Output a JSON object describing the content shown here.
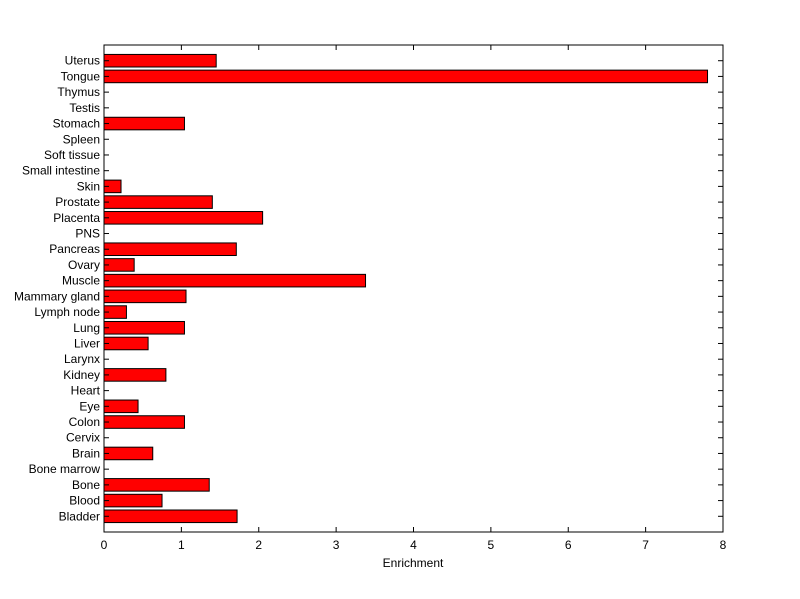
{
  "chart_data": {
    "type": "bar",
    "orientation": "horizontal",
    "title": "",
    "xlabel": "Enrichment",
    "ylabel": "",
    "xlim": [
      0,
      8
    ],
    "x_ticks": [
      "0",
      "1",
      "2",
      "3",
      "4",
      "5",
      "6",
      "7",
      "8"
    ],
    "grid": false,
    "bar_color": "#ff0000",
    "bar_edge_color": "#000000",
    "categories": [
      "Bladder",
      "Blood",
      "Bone",
      "Bone marrow",
      "Brain",
      "Cervix",
      "Colon",
      "Eye",
      "Heart",
      "Kidney",
      "Larynx",
      "Liver",
      "Lung",
      "Lymph node",
      "Mammary gland",
      "Muscle",
      "Ovary",
      "Pancreas",
      "PNS",
      "Placenta",
      "Prostate",
      "Skin",
      "Small intestine",
      "Soft tissue",
      "Spleen",
      "Stomach",
      "Testis",
      "Thymus",
      "Tongue",
      "Uterus"
    ],
    "values": [
      1.72,
      0.75,
      1.36,
      0,
      0.63,
      0,
      1.04,
      0.44,
      0,
      0.8,
      0,
      0.57,
      1.04,
      0.29,
      1.06,
      3.38,
      0.39,
      1.71,
      0,
      2.05,
      1.4,
      0.22,
      0,
      0,
      0,
      1.04,
      0,
      0,
      7.8,
      1.45
    ]
  }
}
